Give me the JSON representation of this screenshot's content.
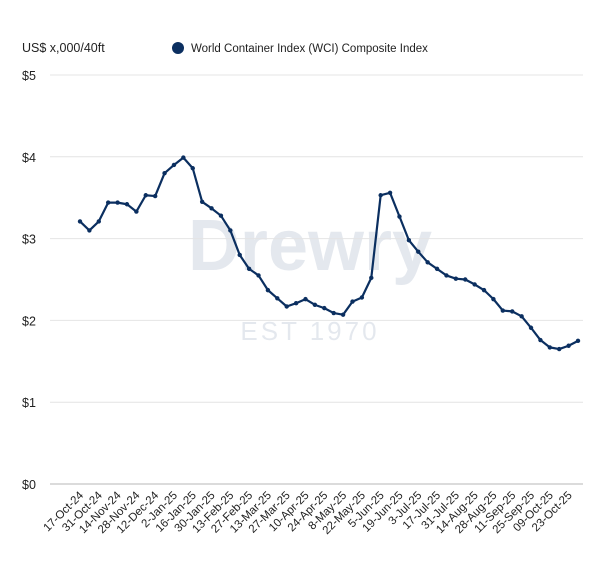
{
  "chart_data": {
    "type": "line",
    "title": "",
    "ylabel": "US$ x,000/40ft",
    "xlabel": "",
    "ylim": [
      0,
      5
    ],
    "yticks": [
      "$0",
      "$1",
      "$2",
      "$3",
      "$4",
      "$5"
    ],
    "grid": true,
    "legend_position": "top",
    "watermark": "Drewry EST 1970",
    "xtick_labels": [
      "17-Oct-24",
      "31-Oct-24",
      "14-Nov-24",
      "28-Nov-24",
      "12-Dec-24",
      "2-Jan-25",
      "16-Jan-25",
      "30-Jan-25",
      "13-Feb-25",
      "27-Feb-25",
      "13-Mar-25",
      "27-Mar-25",
      "10-Apr-25",
      "24-Apr-25",
      "8-May-25",
      "22-May-25",
      "5-Jun-25",
      "19-Jun-25",
      "3-Jul-25",
      "17-Jul-25",
      "31-Jul-25",
      "14-Aug-25",
      "28-Aug-25",
      "11-Sep-25",
      "25-Sep-25",
      "09-Oct-25",
      "23-Oct-25"
    ],
    "series": [
      {
        "name": "World Container Index (WCI) Composite Index",
        "color": "#0b2f60",
        "values": [
          3.21,
          3.1,
          3.21,
          3.44,
          3.44,
          3.42,
          3.33,
          3.53,
          3.52,
          3.8,
          3.9,
          3.99,
          3.86,
          3.45,
          3.37,
          3.28,
          3.1,
          2.8,
          2.63,
          2.55,
          2.37,
          2.27,
          2.17,
          2.21,
          2.26,
          2.19,
          2.15,
          2.09,
          2.07,
          2.23,
          2.28,
          2.52,
          3.53,
          3.56,
          3.27,
          2.98,
          2.84,
          2.71,
          2.63,
          2.55,
          2.51,
          2.5,
          2.44,
          2.37,
          2.26,
          2.12,
          2.11,
          2.05,
          1.91,
          1.76,
          1.67,
          1.65,
          1.69,
          1.75
        ]
      }
    ]
  }
}
